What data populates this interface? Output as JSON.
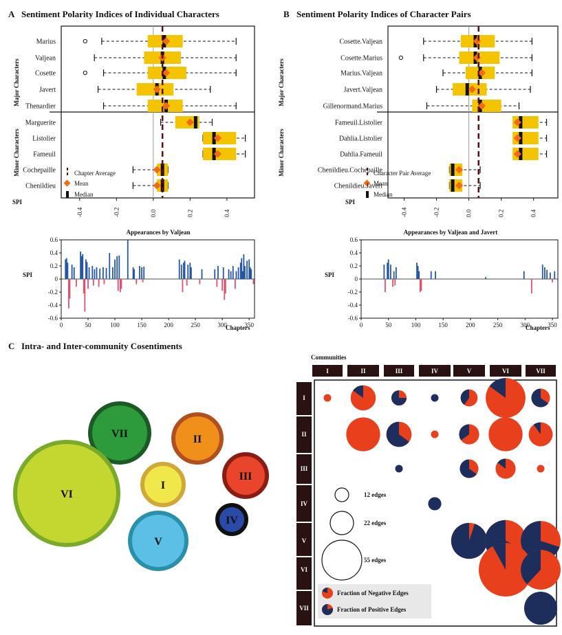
{
  "colors": {
    "box": "#f5c400",
    "median": "#111111",
    "mean": "#f26b12",
    "chapter_avg": "#5a1010",
    "pos_bar": "#2456a6",
    "neg_bar": "#e0506e",
    "pie_neg": "#e8401c",
    "pie_pos": "#1d2e5c",
    "header_bg": "#2a1212"
  },
  "panelA": {
    "letter": "A",
    "title": "Sentiment Polarity Indices of Individual Characters",
    "major_label": "Major Characters",
    "minor_label": "Minor Characters",
    "xlabel": "SPI",
    "xticks": [
      "-0.4",
      "-0.2",
      "0.0",
      "0.2",
      "0.4"
    ],
    "legend": [
      "Chapter Average",
      "Mean",
      "Median"
    ]
  },
  "panelB": {
    "letter": "B",
    "title": "Sentiment Polarity Indices of Character Pairs",
    "major_label": "Major Characters",
    "minor_label": "Minor Characters",
    "xlabel": "SPI",
    "xticks": [
      "-0.4",
      "-0.2",
      "0.0",
      "0.2",
      "0.4"
    ],
    "legend": [
      "Character Pair Average",
      "Mean",
      "Median"
    ]
  },
  "panelA2": {
    "title": "Appearances by Valjean",
    "ylabel": "SPI",
    "xlabel": "Chapters"
  },
  "panelB2": {
    "title": "Appearances by Valjean and Javert",
    "ylabel": "SPI",
    "xlabel": "Chapters"
  },
  "panelC": {
    "letter": "C",
    "title": "Intra- and Inter-community Cosentiments",
    "communities_label": "Communities",
    "bubbles": [
      {
        "id": "VII",
        "fill": "#2d9a3c",
        "ring": "#1b5a25"
      },
      {
        "id": "II",
        "fill": "#f0901a",
        "ring": "#b05020"
      },
      {
        "id": "III",
        "fill": "#e8452c",
        "ring": "#8a1c14"
      },
      {
        "id": "VI",
        "fill": "#c4d630",
        "ring": "#7aaa2a"
      },
      {
        "id": "I",
        "fill": "#f0e84a",
        "ring": "#d0a838"
      },
      {
        "id": "IV",
        "fill": "#2a4aa8",
        "ring": "#101010"
      },
      {
        "id": "V",
        "fill": "#5cbfe6",
        "ring": "#2a90aa"
      }
    ],
    "matrix_headers": [
      "I",
      "II",
      "III",
      "IV",
      "V",
      "VI",
      "VII"
    ],
    "size_legend": [
      "12 edges",
      "22 edges",
      "55 edges"
    ],
    "pie_legend": [
      "Fraction of Negative Edges",
      "Fraction of Positive Edges"
    ]
  },
  "chart_data": [
    {
      "type": "boxplot",
      "title": "Sentiment Polarity Indices of Individual Characters",
      "xlabel": "SPI",
      "xlim": [
        -0.5,
        0.55
      ],
      "chapter_average": 0.05,
      "groups": [
        {
          "name": "Marius",
          "whisker": [
            -0.28,
            0.45
          ],
          "q": [
            -0.03,
            0.16
          ],
          "median": 0.06,
          "mean": 0.07,
          "outliers": [
            -0.37
          ]
        },
        {
          "name": "Valjean",
          "whisker": [
            -0.32,
            0.45
          ],
          "q": [
            -0.05,
            0.15
          ],
          "median": 0.05,
          "mean": 0.05,
          "outliers": []
        },
        {
          "name": "Cosette",
          "whisker": [
            -0.27,
            0.45
          ],
          "q": [
            -0.03,
            0.18
          ],
          "median": 0.06,
          "mean": 0.07,
          "outliers": [
            -0.37
          ]
        },
        {
          "name": "Javert",
          "whisker": [
            -0.3,
            0.31
          ],
          "q": [
            -0.09,
            0.11
          ],
          "median": 0.02,
          "mean": 0.02,
          "outliers": []
        },
        {
          "name": "Thenardier",
          "whisker": [
            -0.27,
            0.45
          ],
          "q": [
            -0.03,
            0.16
          ],
          "median": 0.07,
          "mean": 0.07,
          "outliers": []
        },
        {
          "name": "Marguerite",
          "whisker": [
            0.04,
            0.32
          ],
          "q": [
            0.12,
            0.25
          ],
          "median": 0.23,
          "mean": 0.2,
          "outliers": []
        },
        {
          "name": "Listolier",
          "whisker": [
            0.27,
            0.5
          ],
          "q": [
            0.27,
            0.45
          ],
          "median": 0.33,
          "mean": 0.35,
          "outliers": []
        },
        {
          "name": "Fameuil",
          "whisker": [
            0.27,
            0.5
          ],
          "q": [
            0.27,
            0.45
          ],
          "median": 0.33,
          "mean": 0.35,
          "outliers": []
        },
        {
          "name": "Cochepaille",
          "whisker": [
            -0.11,
            0.08
          ],
          "q": [
            0.02,
            0.08
          ],
          "median": 0.05,
          "mean": 0.02,
          "outliers": []
        },
        {
          "name": "Chenildieu",
          "whisker": [
            -0.11,
            0.08
          ],
          "q": [
            0.02,
            0.08
          ],
          "median": 0.05,
          "mean": 0.02,
          "outliers": []
        }
      ]
    },
    {
      "type": "boxplot",
      "title": "Sentiment Polarity Indices of Character Pairs",
      "xlabel": "SPI",
      "xlim": [
        -0.5,
        0.55
      ],
      "pair_average": 0.06,
      "groups": [
        {
          "name": "Cosette.Valjean",
          "whisker": [
            -0.28,
            0.39
          ],
          "q": [
            -0.05,
            0.16
          ],
          "median": 0.04,
          "mean": 0.05,
          "outliers": []
        },
        {
          "name": "Cosette.Marius",
          "whisker": [
            -0.28,
            0.39
          ],
          "q": [
            -0.06,
            0.19
          ],
          "median": 0.04,
          "mean": 0.05,
          "outliers": [
            -0.42
          ]
        },
        {
          "name": "Marius.Valjean",
          "whisker": [
            -0.16,
            0.39
          ],
          "q": [
            -0.02,
            0.16
          ],
          "median": 0.07,
          "mean": 0.08,
          "outliers": []
        },
        {
          "name": "Javert.Valjean",
          "whisker": [
            -0.2,
            0.38
          ],
          "q": [
            -0.1,
            0.11
          ],
          "median": -0.01,
          "mean": 0.02,
          "outliers": []
        },
        {
          "name": "Gillenormand.Marius",
          "whisker": [
            -0.26,
            0.31
          ],
          "q": [
            0.02,
            0.2
          ],
          "median": 0.07,
          "mean": 0.08,
          "outliers": []
        },
        {
          "name": "Fameuil.Listolier",
          "whisker": [
            0.29,
            0.48
          ],
          "q": [
            0.27,
            0.43
          ],
          "median": 0.32,
          "mean": 0.3,
          "outliers": []
        },
        {
          "name": "Dahlia.Listolier",
          "whisker": [
            0.29,
            0.48
          ],
          "q": [
            0.27,
            0.43
          ],
          "median": 0.32,
          "mean": 0.3,
          "outliers": []
        },
        {
          "name": "Dahlia.Fameuil",
          "whisker": [
            0.29,
            0.48
          ],
          "q": [
            0.27,
            0.43
          ],
          "median": 0.32,
          "mean": 0.3,
          "outliers": []
        },
        {
          "name": "Chenildieu.Cochepaille",
          "whisker": [
            -0.12,
            0.07
          ],
          "q": [
            -0.12,
            -0.04
          ],
          "median": -0.1,
          "mean": -0.06,
          "outliers": []
        },
        {
          "name": "Chenildieu.Javert",
          "whisker": [
            -0.12,
            0.07
          ],
          "q": [
            -0.12,
            -0.04
          ],
          "median": -0.1,
          "mean": -0.06,
          "outliers": []
        }
      ]
    },
    {
      "type": "bar",
      "title": "Appearances by Valjean",
      "xlabel": "Chapters",
      "ylabel": "SPI",
      "xlim": [
        0,
        360
      ],
      "ylim": [
        -0.6,
        0.6
      ],
      "xticks": [
        0,
        50,
        100,
        150,
        200,
        250,
        300,
        350
      ],
      "yticks": [
        0.6,
        0.4,
        0.2,
        0,
        -0.2,
        -0.4,
        -0.6
      ],
      "x": [
        8,
        10,
        12,
        14,
        16,
        20,
        24,
        28,
        36,
        38,
        40,
        42,
        44,
        46,
        48,
        50,
        52,
        58,
        60,
        62,
        66,
        70,
        72,
        78,
        80,
        84,
        90,
        96,
        100,
        104,
        106,
        108,
        110,
        112,
        124,
        134,
        136,
        140,
        146,
        150,
        152,
        154,
        220,
        224,
        226,
        228,
        230,
        234,
        236,
        240,
        242,
        258,
        262,
        286,
        290,
        292,
        300,
        302,
        304,
        306,
        312,
        316,
        320,
        324,
        326,
        330,
        334,
        336,
        338,
        340,
        342,
        346,
        350,
        352,
        354,
        358
      ],
      "values": [
        0.3,
        0.32,
        0.25,
        -0.45,
        -0.3,
        0.22,
        0.18,
        -0.12,
        0.42,
        0.35,
        0.38,
        -0.22,
        -0.5,
        0.3,
        0.26,
        -0.15,
        0.18,
        0.2,
        -0.1,
        0.15,
        0.18,
        -0.12,
        0.16,
        0.18,
        -0.08,
        0.17,
        0.4,
        0.18,
        0.3,
        0.35,
        -0.18,
        0.36,
        -0.2,
        -0.15,
        0.6,
        0.18,
        0.15,
        -0.08,
        0.2,
        0.18,
        -0.05,
        0.19,
        0.3,
        0.22,
        -0.2,
        0.25,
        0.28,
        -0.1,
        0.22,
        0.25,
        0.18,
        -0.08,
        0.15,
        0.15,
        -0.12,
        0.2,
        -0.18,
        0.18,
        -0.32,
        -0.22,
        0.15,
        0.12,
        0.2,
        -0.15,
        0.12,
        0.18,
        0.25,
        0.32,
        0.12,
        0.38,
        0.2,
        0.28,
        0.3,
        0.18,
        0.15,
        -0.08
      ]
    },
    {
      "type": "bar",
      "title": "Appearances by Valjean and Javert",
      "xlabel": "Chapters",
      "ylabel": "SPI",
      "xlim": [
        0,
        360
      ],
      "ylim": [
        -0.6,
        0.6
      ],
      "xticks": [
        0,
        50,
        100,
        150,
        200,
        250,
        300,
        350
      ],
      "yticks": [
        0.6,
        0.4,
        0.2,
        0,
        -0.2,
        -0.4,
        -0.6
      ],
      "x": [
        42,
        44,
        48,
        50,
        54,
        58,
        60,
        62,
        64,
        102,
        104,
        106,
        108,
        110,
        128,
        136,
        228,
        298,
        312,
        332,
        336,
        340,
        346,
        350,
        354
      ],
      "values": [
        0.22,
        -0.2,
        0.25,
        0.3,
        0.22,
        -0.12,
        0.12,
        -0.1,
        0.18,
        0.25,
        0.2,
        0.12,
        -0.2,
        -0.18,
        0.12,
        0.12,
        0.03,
        0.12,
        -0.22,
        0.22,
        0.18,
        0.14,
        0.1,
        -0.05,
        0.12
      ]
    },
    {
      "type": "pie_matrix",
      "title": "Intra- and Inter-community Cosentiments",
      "rows": [
        "I",
        "II",
        "III",
        "IV",
        "V",
        "VI",
        "VII"
      ],
      "cols": [
        "I",
        "II",
        "III",
        "IV",
        "V",
        "VI",
        "VII"
      ],
      "cells": [
        {
          "row": "I",
          "col": "I",
          "edges": 2,
          "neg": 1.0
        },
        {
          "row": "I",
          "col": "II",
          "edges": 22,
          "neg": 0.85
        },
        {
          "row": "I",
          "col": "III",
          "edges": 8,
          "neg": 0.25
        },
        {
          "row": "I",
          "col": "IV",
          "edges": 2,
          "neg": 0.0
        },
        {
          "row": "I",
          "col": "V",
          "edges": 10,
          "neg": 0.6
        },
        {
          "row": "I",
          "col": "VI",
          "edges": 55,
          "neg": 0.85
        },
        {
          "row": "I",
          "col": "VII",
          "edges": 12,
          "neg": 0.35
        },
        {
          "row": "II",
          "col": "II",
          "edges": 40,
          "neg": 1.0
        },
        {
          "row": "II",
          "col": "III",
          "edges": 22,
          "neg": 0.35
        },
        {
          "row": "II",
          "col": "IV",
          "edges": 2,
          "neg": 1.0
        },
        {
          "row": "II",
          "col": "V",
          "edges": 14,
          "neg": 0.65
        },
        {
          "row": "II",
          "col": "VI",
          "edges": 40,
          "neg": 1.0
        },
        {
          "row": "II",
          "col": "VII",
          "edges": 20,
          "neg": 0.9
        },
        {
          "row": "III",
          "col": "III",
          "edges": 2,
          "neg": 0.0
        },
        {
          "row": "III",
          "col": "V",
          "edges": 12,
          "neg": 0.35
        },
        {
          "row": "III",
          "col": "VI",
          "edges": 14,
          "neg": 0.85
        },
        {
          "row": "III",
          "col": "VII",
          "edges": 2,
          "neg": 1.0
        },
        {
          "row": "IV",
          "col": "IV",
          "edges": 6,
          "neg": 0.0
        },
        {
          "row": "V",
          "col": "V",
          "edges": 45,
          "neg": 0.05
        },
        {
          "row": "V",
          "col": "VI",
          "edges": 60,
          "neg": 0.32
        },
        {
          "row": "V",
          "col": "VII",
          "edges": 55,
          "neg": 0.3
        },
        {
          "row": "VI",
          "col": "VI",
          "edges": 100,
          "neg": 0.92
        },
        {
          "row": "VI",
          "col": "VII",
          "edges": 55,
          "neg": 0.62
        },
        {
          "row": "VII",
          "col": "VII",
          "edges": 38,
          "neg": 0.0
        }
      ]
    }
  ]
}
